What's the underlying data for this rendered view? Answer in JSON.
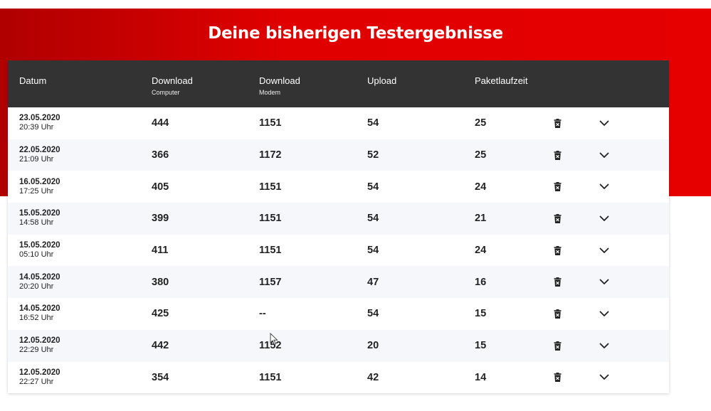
{
  "page": {
    "title": "Deine bisherigen Testergebnisse"
  },
  "table": {
    "headers": {
      "datum": "Datum",
      "download_computer": {
        "main": "Download",
        "sub": "Computer"
      },
      "download_modem": {
        "main": "Download",
        "sub": "Modem"
      },
      "upload": "Upload",
      "paketlaufzeit": "Paketlaufzeit"
    },
    "rows": [
      {
        "date": "23.05.2020",
        "time": "20:39 Uhr",
        "download_computer": "444",
        "download_modem": "1151",
        "upload": "54",
        "paketlaufzeit": "25"
      },
      {
        "date": "22.05.2020",
        "time": "21:09 Uhr",
        "download_computer": "366",
        "download_modem": "1172",
        "upload": "52",
        "paketlaufzeit": "25"
      },
      {
        "date": "16.05.2020",
        "time": "17:25 Uhr",
        "download_computer": "405",
        "download_modem": "1151",
        "upload": "54",
        "paketlaufzeit": "24"
      },
      {
        "date": "15.05.2020",
        "time": "14:58 Uhr",
        "download_computer": "399",
        "download_modem": "1151",
        "upload": "54",
        "paketlaufzeit": "21"
      },
      {
        "date": "15.05.2020",
        "time": "05:10 Uhr",
        "download_computer": "411",
        "download_modem": "1151",
        "upload": "54",
        "paketlaufzeit": "24"
      },
      {
        "date": "14.05.2020",
        "time": "20:20 Uhr",
        "download_computer": "380",
        "download_modem": "1157",
        "upload": "47",
        "paketlaufzeit": "16"
      },
      {
        "date": "14.05.2020",
        "time": "16:52 Uhr",
        "download_computer": "425",
        "download_modem": "--",
        "upload": "54",
        "paketlaufzeit": "15"
      },
      {
        "date": "12.05.2020",
        "time": "22:29 Uhr",
        "download_computer": "442",
        "download_modem": "1152",
        "upload": "20",
        "paketlaufzeit": "15"
      },
      {
        "date": "12.05.2020",
        "time": "22:27 Uhr",
        "download_computer": "354",
        "download_modem": "1151",
        "upload": "42",
        "paketlaufzeit": "14"
      }
    ]
  },
  "icons": {
    "delete": "trash-icon",
    "expand": "chevron-down-icon"
  },
  "colors": {
    "brand_red": "#e60000",
    "header_dark": "#333333"
  }
}
